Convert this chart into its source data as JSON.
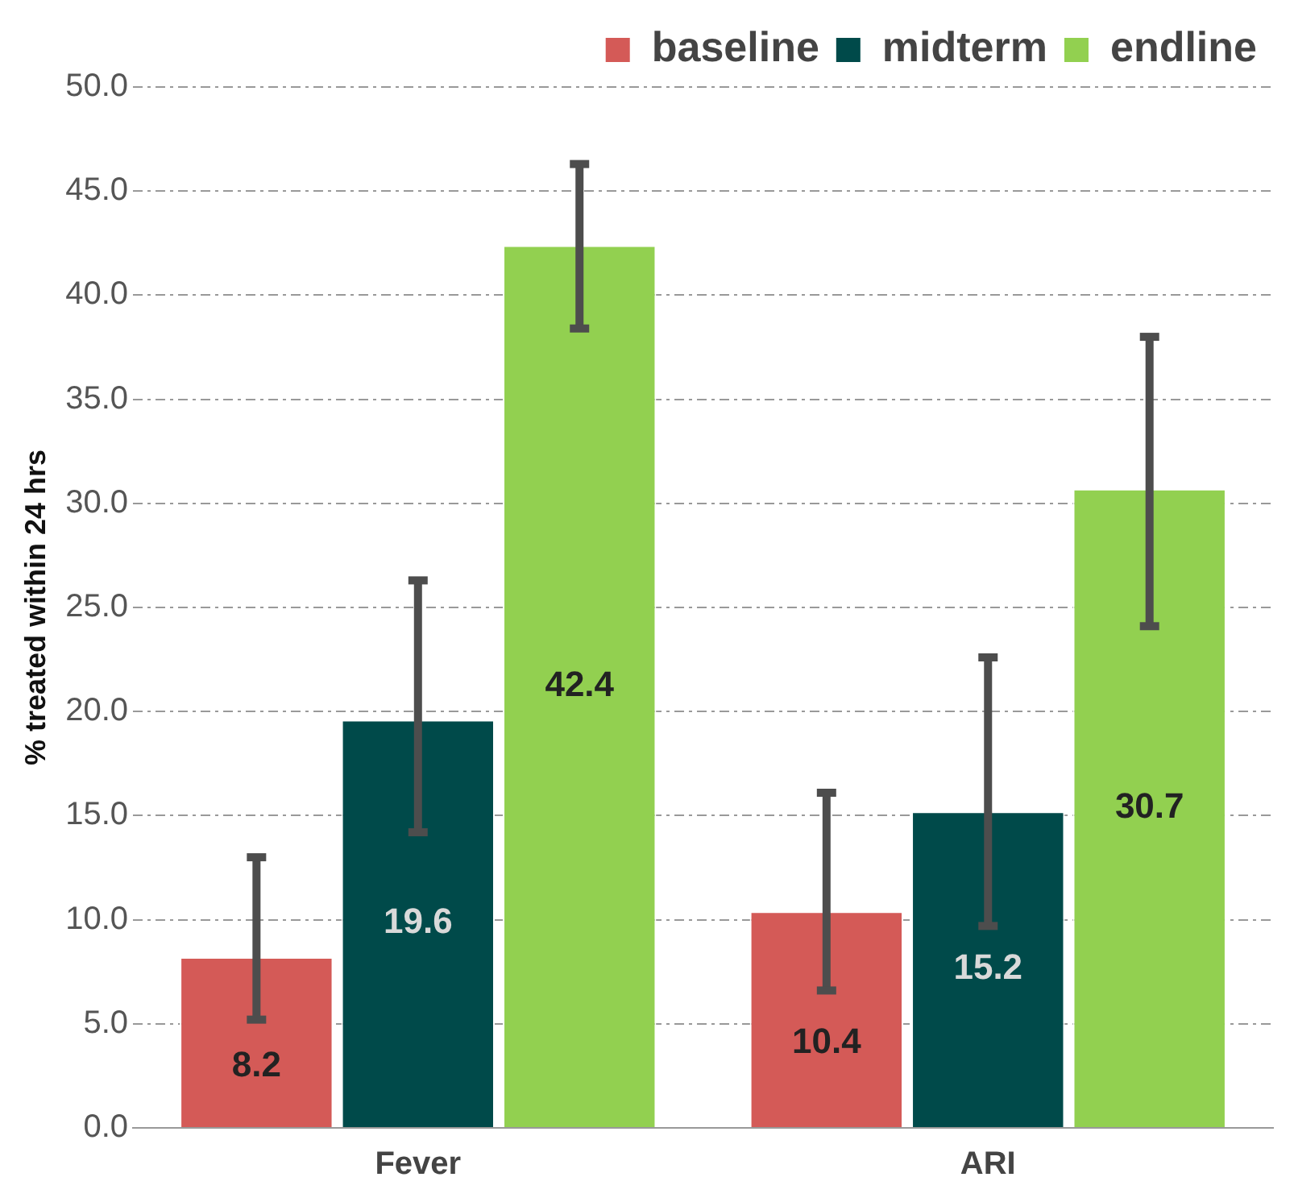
{
  "chart_data": {
    "type": "bar",
    "ylabel": "% treated within 24 hrs",
    "categories": [
      "Fever",
      "ARI"
    ],
    "series": [
      {
        "name": "baseline",
        "color": "#d45a57",
        "values": [
          8.2,
          10.4
        ],
        "errors": [
          [
            5.2,
            13.0
          ],
          [
            6.6,
            16.1
          ]
        ]
      },
      {
        "name": "midterm",
        "color": "#004a4a",
        "values": [
          19.6,
          15.2
        ],
        "errors": [
          [
            14.2,
            26.3
          ],
          [
            9.7,
            22.6
          ]
        ]
      },
      {
        "name": "endline",
        "color": "#92d050",
        "values": [
          42.4,
          30.7
        ],
        "errors": [
          [
            38.4,
            46.3
          ],
          [
            24.1,
            38.0
          ]
        ]
      }
    ],
    "ylim": [
      0,
      50
    ],
    "yticks": [
      {
        "value": 0,
        "label": "0.0"
      },
      {
        "value": 5,
        "label": "5.0"
      },
      {
        "value": 10,
        "label": "10.0"
      },
      {
        "value": 15,
        "label": "15.0"
      },
      {
        "value": 20,
        "label": "20.0"
      },
      {
        "value": 25,
        "label": "25.0"
      },
      {
        "value": 30,
        "label": "30.0"
      },
      {
        "value": 35,
        "label": "35.0"
      },
      {
        "value": 40,
        "label": "40.0"
      },
      {
        "value": 45,
        "label": "45.0"
      },
      {
        "value": 50,
        "label": "50.0"
      }
    ],
    "grid": "y",
    "legend": "top right",
    "data_labels": true
  }
}
